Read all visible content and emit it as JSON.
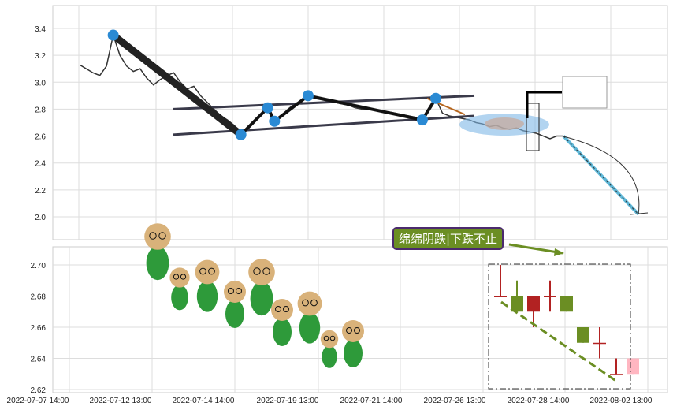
{
  "chart_data": [
    {
      "type": "line",
      "panel": "top",
      "yticks": [
        2.0,
        2.2,
        2.4,
        2.6,
        2.8,
        3.0,
        3.2,
        3.4
      ],
      "ylim": [
        1.83,
        3.56
      ],
      "grid": true,
      "series": [
        {
          "values": [
            3.13,
            3.1,
            3.07,
            3.05,
            3.12,
            3.35,
            3.2,
            3.12,
            3.08,
            3.1,
            3.03,
            2.98,
            3.02,
            3.05,
            3.07,
            3.0,
            2.95,
            2.97,
            2.9,
            2.85,
            2.8,
            2.75,
            2.72,
            2.68,
            2.62,
            2.65,
            2.7,
            2.76,
            2.8,
            2.72,
            2.75,
            2.8,
            2.84,
            2.86,
            2.9,
            2.88,
            2.87,
            2.86,
            2.85,
            2.84,
            2.83,
            2.81,
            2.8,
            2.8,
            2.79,
            2.78,
            2.78,
            2.77,
            2.76,
            2.75,
            2.74,
            2.72,
            2.8,
            2.88,
            2.77,
            2.75,
            2.74,
            2.73,
            2.72,
            2.7,
            2.69,
            2.67,
            2.68,
            2.66,
            2.65,
            2.66,
            2.64,
            2.63,
            2.62,
            2.6,
            2.58,
            2.6,
            2.6
          ]
        }
      ],
      "markers": [
        {
          "i": 5,
          "v": 3.35
        },
        {
          "i": 24,
          "v": 2.61
        },
        {
          "i": 28,
          "v": 2.81
        },
        {
          "i": 29,
          "v": 2.71
        },
        {
          "i": 34,
          "v": 2.9
        },
        {
          "i": 51,
          "v": 2.72
        },
        {
          "i": 53,
          "v": 2.88
        }
      ],
      "projection": {
        "from": 2.6,
        "to": 2.02
      }
    },
    {
      "type": "candlestick",
      "panel": "bottom",
      "yticks": [
        2.62,
        2.64,
        2.66,
        2.68,
        2.7
      ],
      "ylim": [
        2.619,
        2.712
      ],
      "grid": true,
      "candles": [
        {
          "o": 2.68,
          "c": 2.68,
          "h": 2.7,
          "l": 2.68,
          "color": "#b22222"
        },
        {
          "o": 2.68,
          "c": 2.67,
          "h": 2.69,
          "l": 2.67,
          "color": "#6b8e23"
        },
        {
          "o": 2.68,
          "c": 2.67,
          "h": 2.68,
          "l": 2.66,
          "color": "#b22222"
        },
        {
          "o": 2.68,
          "c": 2.68,
          "h": 2.69,
          "l": 2.67,
          "color": "#b22222"
        },
        {
          "o": 2.68,
          "c": 2.67,
          "h": 2.68,
          "l": 2.67,
          "color": "#6b8e23"
        },
        {
          "o": 2.66,
          "c": 2.65,
          "h": 2.66,
          "l": 2.65,
          "color": "#6b8e23"
        },
        {
          "o": 2.65,
          "c": 2.65,
          "h": 2.66,
          "l": 2.64,
          "color": "#b22222"
        },
        {
          "o": 2.63,
          "c": 2.63,
          "h": 2.64,
          "l": 2.63,
          "color": "#b22222"
        },
        {
          "o": 2.64,
          "c": 2.63,
          "h": 2.64,
          "l": 2.63,
          "color": "#ffb6c1"
        }
      ]
    },
    {
      "xticks": [
        "2022-07-07 14:00",
        "2022-07-12 13:00",
        "2022-07-14 14:00",
        "2022-07-19 13:00",
        "2022-07-21 14:00",
        "2022-07-26 13:00",
        "2022-07-28 14:00",
        "2022-08-02 13:00"
      ]
    }
  ],
  "annotation": {
    "label": "绵绵阴跌|下跌不止",
    "bg": "#6b8e23"
  }
}
